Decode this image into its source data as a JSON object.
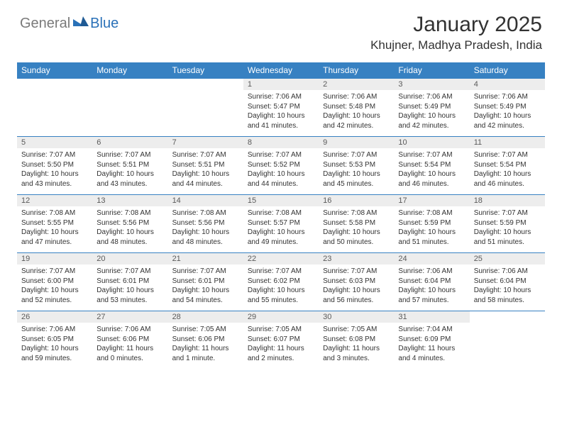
{
  "brand": {
    "part1": "General",
    "part2": "Blue"
  },
  "title": "January 2025",
  "location": "Khujner, Madhya Pradesh, India",
  "colors": {
    "header_bg": "#3781c2",
    "header_text": "#ffffff",
    "daynum_bg": "#ededed",
    "daynum_text": "#5a5a5a",
    "body_text": "#323232",
    "row_divider": "#3781c2",
    "logo_gray": "#7a7a7a",
    "logo_blue": "#2a71b8"
  },
  "columns": [
    "Sunday",
    "Monday",
    "Tuesday",
    "Wednesday",
    "Thursday",
    "Friday",
    "Saturday"
  ],
  "weeks": [
    {
      "nums": [
        "",
        "",
        "",
        "1",
        "2",
        "3",
        "4"
      ],
      "info": [
        null,
        null,
        null,
        {
          "sunrise": "7:06 AM",
          "sunset": "5:47 PM",
          "daylight": "10 hours and 41 minutes."
        },
        {
          "sunrise": "7:06 AM",
          "sunset": "5:48 PM",
          "daylight": "10 hours and 42 minutes."
        },
        {
          "sunrise": "7:06 AM",
          "sunset": "5:49 PM",
          "daylight": "10 hours and 42 minutes."
        },
        {
          "sunrise": "7:06 AM",
          "sunset": "5:49 PM",
          "daylight": "10 hours and 42 minutes."
        }
      ]
    },
    {
      "nums": [
        "5",
        "6",
        "7",
        "8",
        "9",
        "10",
        "11"
      ],
      "info": [
        {
          "sunrise": "7:07 AM",
          "sunset": "5:50 PM",
          "daylight": "10 hours and 43 minutes."
        },
        {
          "sunrise": "7:07 AM",
          "sunset": "5:51 PM",
          "daylight": "10 hours and 43 minutes."
        },
        {
          "sunrise": "7:07 AM",
          "sunset": "5:51 PM",
          "daylight": "10 hours and 44 minutes."
        },
        {
          "sunrise": "7:07 AM",
          "sunset": "5:52 PM",
          "daylight": "10 hours and 44 minutes."
        },
        {
          "sunrise": "7:07 AM",
          "sunset": "5:53 PM",
          "daylight": "10 hours and 45 minutes."
        },
        {
          "sunrise": "7:07 AM",
          "sunset": "5:54 PM",
          "daylight": "10 hours and 46 minutes."
        },
        {
          "sunrise": "7:07 AM",
          "sunset": "5:54 PM",
          "daylight": "10 hours and 46 minutes."
        }
      ]
    },
    {
      "nums": [
        "12",
        "13",
        "14",
        "15",
        "16",
        "17",
        "18"
      ],
      "info": [
        {
          "sunrise": "7:08 AM",
          "sunset": "5:55 PM",
          "daylight": "10 hours and 47 minutes."
        },
        {
          "sunrise": "7:08 AM",
          "sunset": "5:56 PM",
          "daylight": "10 hours and 48 minutes."
        },
        {
          "sunrise": "7:08 AM",
          "sunset": "5:56 PM",
          "daylight": "10 hours and 48 minutes."
        },
        {
          "sunrise": "7:08 AM",
          "sunset": "5:57 PM",
          "daylight": "10 hours and 49 minutes."
        },
        {
          "sunrise": "7:08 AM",
          "sunset": "5:58 PM",
          "daylight": "10 hours and 50 minutes."
        },
        {
          "sunrise": "7:08 AM",
          "sunset": "5:59 PM",
          "daylight": "10 hours and 51 minutes."
        },
        {
          "sunrise": "7:07 AM",
          "sunset": "5:59 PM",
          "daylight": "10 hours and 51 minutes."
        }
      ]
    },
    {
      "nums": [
        "19",
        "20",
        "21",
        "22",
        "23",
        "24",
        "25"
      ],
      "info": [
        {
          "sunrise": "7:07 AM",
          "sunset": "6:00 PM",
          "daylight": "10 hours and 52 minutes."
        },
        {
          "sunrise": "7:07 AM",
          "sunset": "6:01 PM",
          "daylight": "10 hours and 53 minutes."
        },
        {
          "sunrise": "7:07 AM",
          "sunset": "6:01 PM",
          "daylight": "10 hours and 54 minutes."
        },
        {
          "sunrise": "7:07 AM",
          "sunset": "6:02 PM",
          "daylight": "10 hours and 55 minutes."
        },
        {
          "sunrise": "7:07 AM",
          "sunset": "6:03 PM",
          "daylight": "10 hours and 56 minutes."
        },
        {
          "sunrise": "7:06 AM",
          "sunset": "6:04 PM",
          "daylight": "10 hours and 57 minutes."
        },
        {
          "sunrise": "7:06 AM",
          "sunset": "6:04 PM",
          "daylight": "10 hours and 58 minutes."
        }
      ]
    },
    {
      "nums": [
        "26",
        "27",
        "28",
        "29",
        "30",
        "31",
        ""
      ],
      "info": [
        {
          "sunrise": "7:06 AM",
          "sunset": "6:05 PM",
          "daylight": "10 hours and 59 minutes."
        },
        {
          "sunrise": "7:06 AM",
          "sunset": "6:06 PM",
          "daylight": "11 hours and 0 minutes."
        },
        {
          "sunrise": "7:05 AM",
          "sunset": "6:06 PM",
          "daylight": "11 hours and 1 minute."
        },
        {
          "sunrise": "7:05 AM",
          "sunset": "6:07 PM",
          "daylight": "11 hours and 2 minutes."
        },
        {
          "sunrise": "7:05 AM",
          "sunset": "6:08 PM",
          "daylight": "11 hours and 3 minutes."
        },
        {
          "sunrise": "7:04 AM",
          "sunset": "6:09 PM",
          "daylight": "11 hours and 4 minutes."
        },
        null
      ]
    }
  ],
  "labels": {
    "sunrise": "Sunrise:",
    "sunset": "Sunset:",
    "daylight": "Daylight:"
  }
}
